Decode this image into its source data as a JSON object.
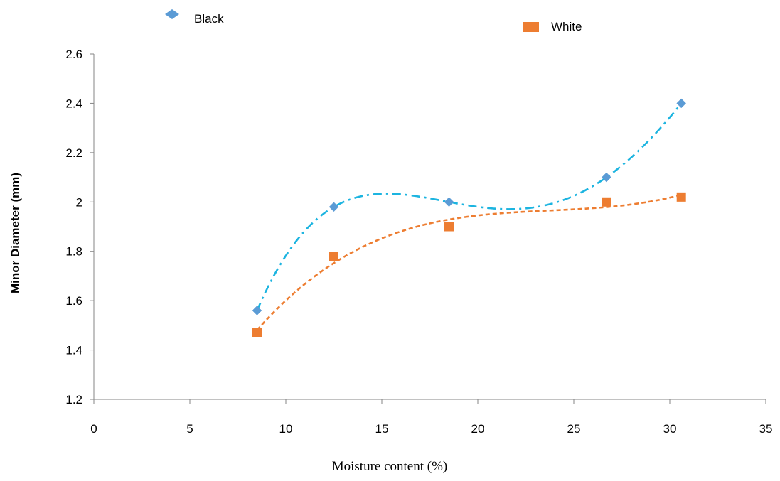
{
  "chart_data": {
    "type": "scatter",
    "title": "",
    "xlabel": "Moisture content (%)",
    "ylabel": "Minor Diameter (mm)",
    "xlim": [
      0,
      35
    ],
    "ylim": [
      1.2,
      2.6
    ],
    "xticks": [
      0,
      5,
      10,
      15,
      20,
      25,
      30,
      35
    ],
    "yticks": [
      1.2,
      1.4,
      1.6,
      1.8,
      2.0,
      2.2,
      2.4,
      2.6
    ],
    "xtick_labels": [
      "0",
      "5",
      "10",
      "15",
      "20",
      "25",
      "30",
      "35"
    ],
    "ytick_labels": [
      "1.2",
      "1.4",
      "1.6",
      "1.8",
      "2",
      "2.2",
      "2.4",
      "2.6"
    ],
    "grid": false,
    "legend_position": "top",
    "series": [
      {
        "name": "Black",
        "marker": "diamond",
        "color": "#5b9bd5",
        "trend_color": "#1cb4e0",
        "trend_style": "dash-dot",
        "points": [
          {
            "x": 8.5,
            "y": 1.56
          },
          {
            "x": 12.5,
            "y": 1.98
          },
          {
            "x": 18.5,
            "y": 2.0
          },
          {
            "x": 26.7,
            "y": 2.1
          },
          {
            "x": 30.6,
            "y": 2.4
          }
        ]
      },
      {
        "name": "White",
        "marker": "square",
        "color": "#ed7d31",
        "trend_color": "#ed7d31",
        "trend_style": "dashed",
        "points": [
          {
            "x": 8.5,
            "y": 1.47
          },
          {
            "x": 12.5,
            "y": 1.78
          },
          {
            "x": 18.5,
            "y": 1.9
          },
          {
            "x": 26.7,
            "y": 2.0
          },
          {
            "x": 30.6,
            "y": 2.02
          }
        ]
      }
    ]
  }
}
